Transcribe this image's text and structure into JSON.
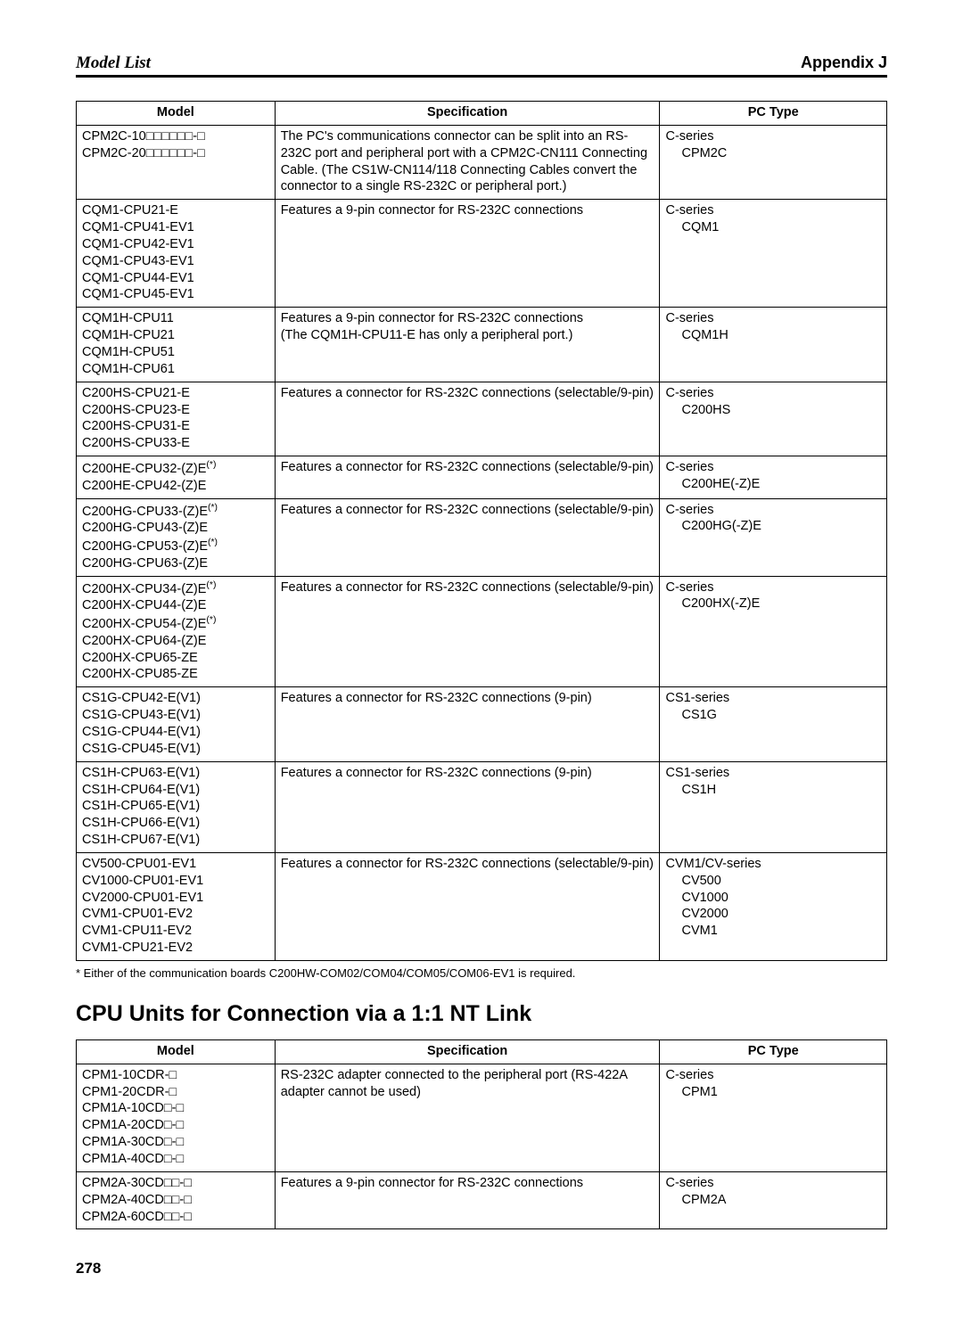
{
  "header": {
    "left": "Model List",
    "right": "Appendix J"
  },
  "table1": {
    "headers": [
      "Model",
      "Specification",
      "PC Type"
    ],
    "rows": [
      {
        "model": "CPM2C-10□□□□□□-□\nCPM2C-20□□□□□□-□",
        "spec": "The PC's communications connector can be split into an RS-232C port and peripheral port with a CPM2C-CN111 Connecting Cable. (The CS1W-CN114/118 Connecting Cables convert the connector to a single RS-232C or peripheral port.)",
        "pctype": "C-series",
        "pctype_sub": "CPM2C"
      },
      {
        "model": "CQM1-CPU21-E\nCQM1-CPU41-EV1\nCQM1-CPU42-EV1\nCQM1-CPU43-EV1\nCQM1-CPU44-EV1\nCQM1-CPU45-EV1",
        "spec": "Features a 9-pin connector for RS-232C connections",
        "pctype": "C-series",
        "pctype_sub": "CQM1"
      },
      {
        "model": "CQM1H-CPU11\nCQM1H-CPU21\nCQM1H-CPU51\nCQM1H-CPU61",
        "spec": "Features a 9-pin connector for RS-232C connections\n(The CQM1H-CPU11-E has only a peripheral port.)",
        "pctype": "C-series",
        "pctype_sub": "CQM1H"
      },
      {
        "model": "C200HS-CPU21-E\nC200HS-CPU23-E\nC200HS-CPU31-E\nC200HS-CPU33-E",
        "spec": "Features a connector for RS-232C connections (selectable/9-pin)",
        "pctype": "C-series",
        "pctype_sub": "C200HS"
      },
      {
        "model": "C200HE-CPU32-(Z)E(*)\nC200HE-CPU42-(Z)E",
        "spec": "Features a connector for RS-232C connections (selectable/9-pin)",
        "pctype": "C-series",
        "pctype_sub": "C200HE(-Z)E"
      },
      {
        "model": "C200HG-CPU33-(Z)E(*)\nC200HG-CPU43-(Z)E\nC200HG-CPU53-(Z)E(*)\nC200HG-CPU63-(Z)E",
        "spec": "Features a connector for RS-232C connections (selectable/9-pin)",
        "pctype": "C-series",
        "pctype_sub": "C200HG(-Z)E"
      },
      {
        "model": "C200HX-CPU34-(Z)E(*)\nC200HX-CPU44-(Z)E\nC200HX-CPU54-(Z)E(*)\nC200HX-CPU64-(Z)E\nC200HX-CPU65-ZE\nC200HX-CPU85-ZE",
        "spec": "Features a connector for RS-232C connections (selectable/9-pin)",
        "pctype": "C-series",
        "pctype_sub": "C200HX(-Z)E"
      },
      {
        "model": "CS1G-CPU42-E(V1)\nCS1G-CPU43-E(V1)\nCS1G-CPU44-E(V1)\nCS1G-CPU45-E(V1)",
        "spec": "Features a connector for RS-232C connections (9-pin)",
        "pctype": "CS1-series",
        "pctype_sub": "CS1G"
      },
      {
        "model": "CS1H-CPU63-E(V1)\nCS1H-CPU64-E(V1)\nCS1H-CPU65-E(V1)\nCS1H-CPU66-E(V1)\nCS1H-CPU67-E(V1)",
        "spec": "Features a connector for RS-232C connections (9-pin)",
        "pctype": "CS1-series",
        "pctype_sub": "CS1H"
      },
      {
        "model": "CV500-CPU01-EV1\nCV1000-CPU01-EV1\nCV2000-CPU01-EV1\nCVM1-CPU01-EV2\nCVM1-CPU11-EV2\nCVM1-CPU21-EV2",
        "spec": "Features a connector for RS-232C connections (selectable/9-pin)",
        "pctype": "CVM1/CV-series",
        "pctype_sub": "CV500\nCV1000\nCV2000\nCVM1"
      }
    ]
  },
  "footnote": "*  Either of the communication boards C200HW-COM02/COM04/COM05/COM06-EV1 is required.",
  "section_title": "CPU Units for Connection via a 1:1 NT Link",
  "table2": {
    "headers": [
      "Model",
      "Specification",
      "PC Type"
    ],
    "rows": [
      {
        "model": "CPM1-10CDR-□\nCPM1-20CDR-□\nCPM1A-10CD□-□\nCPM1A-20CD□-□\nCPM1A-30CD□-□\nCPM1A-40CD□-□",
        "spec": "RS-232C adapter connected to the peripheral port (RS-422A adapter cannot be used)",
        "pctype": "C-series",
        "pctype_sub": "CPM1"
      },
      {
        "model": "CPM2A-30CD□□-□\nCPM2A-40CD□□-□\nCPM2A-60CD□□-□",
        "spec": "Features a 9-pin connector for RS-232C connections",
        "pctype": "C-series",
        "pctype_sub": "CPM2A"
      }
    ]
  },
  "page_number": "278"
}
